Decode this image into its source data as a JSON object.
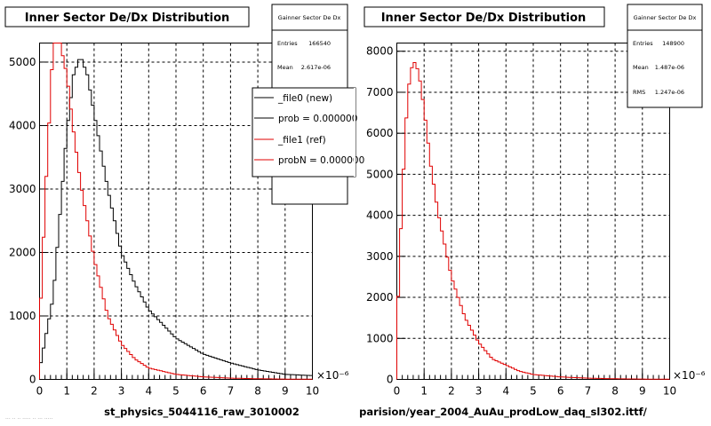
{
  "chart_data": [
    {
      "type": "histogram",
      "title": "Inner Sector De/Dx Distribution",
      "xlabel": "st_physics_5044116_raw_3010002",
      "x_multiplier": "×10⁻⁶",
      "xlim": [
        0,
        10
      ],
      "ylim": [
        0,
        5300
      ],
      "x_ticks": [
        0,
        1,
        2,
        3,
        4,
        5,
        6,
        7,
        8,
        9,
        10
      ],
      "y_ticks": [
        0,
        1000,
        2000,
        3000,
        4000,
        5000
      ],
      "grid": true,
      "stats_box": {
        "title": "Gainner Sector De Dx",
        "rows": [
          {
            "label": "Entries",
            "value": "166540"
          },
          {
            "label": "Mean",
            "value": "2.617e-06"
          }
        ]
      },
      "legend": {
        "placement": "top-right",
        "entries": [
          {
            "label": "_file0 (new)",
            "color": "#000000"
          },
          {
            "label": "prob = 0.000000",
            "color": "#000000"
          },
          {
            "label": "_file1 (ref)",
            "color": "#e00000"
          },
          {
            "label": "probN = 0.000000",
            "color": "#e00000"
          }
        ]
      },
      "series": [
        {
          "color": "#000000",
          "x": [
            0,
            0.5,
            1,
            1.25,
            1.5,
            1.75,
            2,
            2.5,
            3,
            3.5,
            4,
            5,
            6,
            7,
            8,
            9,
            10
          ],
          "values": [
            150,
            1300,
            3900,
            4800,
            5100,
            4800,
            4200,
            3000,
            2000,
            1500,
            1100,
            650,
            400,
            260,
            150,
            80,
            60
          ]
        },
        {
          "color": "#e00000",
          "x": [
            0,
            0.25,
            0.5,
            0.75,
            1,
            1.25,
            1.5,
            2,
            2.5,
            3,
            3.5,
            4,
            5,
            6,
            7,
            8,
            9,
            10
          ],
          "values": [
            800,
            3200,
            5300,
            5300,
            4800,
            3900,
            3100,
            1900,
            1000,
            560,
            320,
            180,
            80,
            40,
            20,
            10,
            5,
            2
          ]
        }
      ],
      "footer_left": "··· ·· ·· ····· ·· ··· ·····"
    },
    {
      "type": "histogram",
      "title": "Inner Sector De/Dx Distribution",
      "xlabel": "parision/year_2004_AuAu_prodLow_daq_sl302.ittf/",
      "x_multiplier": "×10⁻⁶",
      "xlim": [
        0,
        10
      ],
      "ylim": [
        0,
        8200
      ],
      "x_ticks": [
        0,
        1,
        2,
        3,
        4,
        5,
        6,
        7,
        8,
        9,
        10
      ],
      "y_ticks": [
        0,
        1000,
        2000,
        3000,
        4000,
        5000,
        6000,
        7000,
        8000
      ],
      "grid": true,
      "stats_box": {
        "title": "Gainner Sector De Dx",
        "rows": [
          {
            "label": "Entries",
            "value": "148900"
          },
          {
            "label": "Mean",
            "value": "1.487e-06"
          },
          {
            "label": "RMS",
            "value": "1.247e-06"
          }
        ]
      },
      "series": [
        {
          "color": "#e00000",
          "x": [
            0,
            0.2,
            0.4,
            0.6,
            0.8,
            1,
            1.25,
            1.5,
            1.75,
            2,
            2.5,
            3,
            3.5,
            4,
            4.5,
            5,
            6,
            7,
            8,
            9,
            10
          ],
          "values": [
            1200,
            4500,
            7000,
            7800,
            7500,
            6600,
            5200,
            4100,
            3300,
            2500,
            1500,
            900,
            500,
            350,
            200,
            120,
            60,
            30,
            15,
            8,
            5
          ]
        }
      ]
    }
  ]
}
